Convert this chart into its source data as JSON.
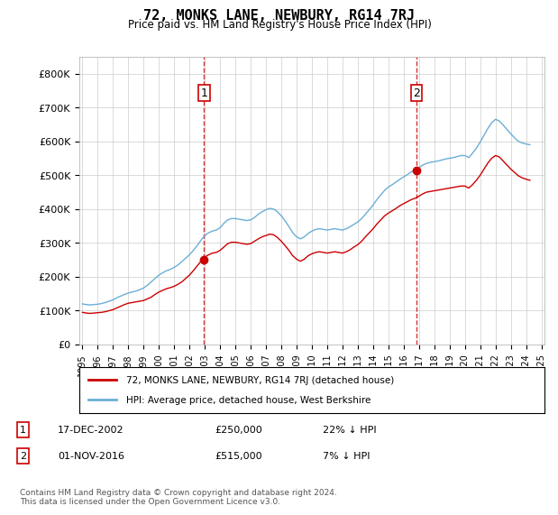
{
  "title": "72, MONKS LANE, NEWBURY, RG14 7RJ",
  "subtitle": "Price paid vs. HM Land Registry's House Price Index (HPI)",
  "ylim": [
    0,
    850000
  ],
  "yticks": [
    0,
    100000,
    200000,
    300000,
    400000,
    500000,
    600000,
    700000,
    800000
  ],
  "ytick_labels": [
    "£0",
    "£100K",
    "£200K",
    "£300K",
    "£400K",
    "£500K",
    "£600K",
    "£700K",
    "£800K"
  ],
  "hpi_color": "#6baed6",
  "price_color": "#cc0000",
  "vline_color": "#cc0000",
  "grid_color": "#cccccc",
  "transaction1": {
    "date": "2002-12-17",
    "price": 250000,
    "label": "1",
    "note": "17-DEC-2002   £250,000    22% ↓ HPI"
  },
  "transaction2": {
    "date": "2016-11-01",
    "price": 515000,
    "label": "2",
    "note": "01-NOV-2016   £515,000    7% ↓ HPI"
  },
  "legend_line1": "72, MONKS LANE, NEWBURY, RG14 7RJ (detached house)",
  "legend_line2": "HPI: Average price, detached house, West Berkshire",
  "footer": "Contains HM Land Registry data © Crown copyright and database right 2024.\nThis data is licensed under the Open Government Licence v3.0.",
  "background_color": "#ffffff",
  "hpi_data": {
    "dates": [
      1995.0,
      1995.25,
      1995.5,
      1995.75,
      1996.0,
      1996.25,
      1996.5,
      1996.75,
      1997.0,
      1997.25,
      1997.5,
      1997.75,
      1998.0,
      1998.25,
      1998.5,
      1998.75,
      1999.0,
      1999.25,
      1999.5,
      1999.75,
      2000.0,
      2000.25,
      2000.5,
      2000.75,
      2001.0,
      2001.25,
      2001.5,
      2001.75,
      2002.0,
      2002.25,
      2002.5,
      2002.75,
      2003.0,
      2003.25,
      2003.5,
      2003.75,
      2004.0,
      2004.25,
      2004.5,
      2004.75,
      2005.0,
      2005.25,
      2005.5,
      2005.75,
      2006.0,
      2006.25,
      2006.5,
      2006.75,
      2007.0,
      2007.25,
      2007.5,
      2007.75,
      2008.0,
      2008.25,
      2008.5,
      2008.75,
      2009.0,
      2009.25,
      2009.5,
      2009.75,
      2010.0,
      2010.25,
      2010.5,
      2010.75,
      2011.0,
      2011.25,
      2011.5,
      2011.75,
      2012.0,
      2012.25,
      2012.5,
      2012.75,
      2013.0,
      2013.25,
      2013.5,
      2013.75,
      2014.0,
      2014.25,
      2014.5,
      2014.75,
      2015.0,
      2015.25,
      2015.5,
      2015.75,
      2016.0,
      2016.25,
      2016.5,
      2016.75,
      2017.0,
      2017.25,
      2017.5,
      2017.75,
      2018.0,
      2018.25,
      2018.5,
      2018.75,
      2019.0,
      2019.25,
      2019.5,
      2019.75,
      2020.0,
      2020.25,
      2020.5,
      2020.75,
      2021.0,
      2021.25,
      2021.5,
      2021.75,
      2022.0,
      2022.25,
      2022.5,
      2022.75,
      2023.0,
      2023.25,
      2023.5,
      2023.75,
      2024.0,
      2024.25
    ],
    "values": [
      120000,
      118000,
      117000,
      118000,
      119000,
      121000,
      124000,
      128000,
      132000,
      138000,
      143000,
      148000,
      152000,
      155000,
      158000,
      162000,
      167000,
      175000,
      185000,
      195000,
      205000,
      212000,
      218000,
      222000,
      228000,
      235000,
      245000,
      255000,
      265000,
      278000,
      292000,
      308000,
      322000,
      330000,
      335000,
      338000,
      345000,
      358000,
      368000,
      372000,
      372000,
      370000,
      368000,
      366000,
      368000,
      375000,
      385000,
      392000,
      398000,
      402000,
      400000,
      392000,
      380000,
      365000,
      348000,
      330000,
      318000,
      312000,
      318000,
      328000,
      335000,
      340000,
      342000,
      340000,
      338000,
      340000,
      342000,
      340000,
      338000,
      342000,
      348000,
      355000,
      362000,
      372000,
      385000,
      398000,
      412000,
      428000,
      442000,
      455000,
      465000,
      472000,
      480000,
      488000,
      495000,
      502000,
      510000,
      515000,
      522000,
      530000,
      535000,
      538000,
      540000,
      542000,
      545000,
      548000,
      550000,
      552000,
      555000,
      558000,
      558000,
      552000,
      565000,
      580000,
      598000,
      618000,
      638000,
      655000,
      665000,
      660000,
      648000,
      635000,
      622000,
      610000,
      600000,
      595000,
      592000,
      590000
    ]
  },
  "price_data": {
    "dates": [
      1995.0,
      1995.25,
      1995.5,
      1995.75,
      1996.0,
      1996.25,
      1996.5,
      1996.75,
      1997.0,
      1997.25,
      1997.5,
      1997.75,
      1998.0,
      1998.25,
      1998.5,
      1998.75,
      1999.0,
      1999.25,
      1999.5,
      1999.75,
      2000.0,
      2000.25,
      2000.5,
      2000.75,
      2001.0,
      2001.25,
      2001.5,
      2001.75,
      2002.0,
      2002.25,
      2002.5,
      2002.75,
      2003.0,
      2003.25,
      2003.5,
      2003.75,
      2004.0,
      2004.25,
      2004.5,
      2004.75,
      2005.0,
      2005.25,
      2005.5,
      2005.75,
      2006.0,
      2006.25,
      2006.5,
      2006.75,
      2007.0,
      2007.25,
      2007.5,
      2007.75,
      2008.0,
      2008.25,
      2008.5,
      2008.75,
      2009.0,
      2009.25,
      2009.5,
      2009.75,
      2010.0,
      2010.25,
      2010.5,
      2010.75,
      2011.0,
      2011.25,
      2011.5,
      2011.75,
      2012.0,
      2012.25,
      2012.5,
      2012.75,
      2013.0,
      2013.25,
      2013.5,
      2013.75,
      2014.0,
      2014.25,
      2014.5,
      2014.75,
      2015.0,
      2015.25,
      2015.5,
      2015.75,
      2016.0,
      2016.25,
      2016.5,
      2016.75,
      2017.0,
      2017.25,
      2017.5,
      2017.75,
      2018.0,
      2018.25,
      2018.5,
      2018.75,
      2019.0,
      2019.25,
      2019.5,
      2019.75,
      2020.0,
      2020.25,
      2020.5,
      2020.75,
      2021.0,
      2021.25,
      2021.5,
      2021.75,
      2022.0,
      2022.25,
      2022.5,
      2022.75,
      2023.0,
      2023.25,
      2023.5,
      2023.75,
      2024.0,
      2024.25
    ],
    "values": [
      95000,
      93000,
      92000,
      93000,
      94000,
      95000,
      97000,
      100000,
      103000,
      108000,
      113000,
      118000,
      122000,
      124000,
      126000,
      128000,
      130000,
      135000,
      140000,
      148000,
      155000,
      160000,
      165000,
      168000,
      172000,
      178000,
      185000,
      195000,
      205000,
      218000,
      232000,
      246000,
      258000,
      265000,
      270000,
      272000,
      278000,
      288000,
      298000,
      302000,
      302000,
      300000,
      298000,
      296000,
      298000,
      305000,
      312000,
      318000,
      322000,
      326000,
      324000,
      316000,
      305000,
      292000,
      278000,
      262000,
      252000,
      246000,
      252000,
      262000,
      268000,
      272000,
      274000,
      272000,
      270000,
      272000,
      274000,
      272000,
      270000,
      274000,
      280000,
      288000,
      295000,
      305000,
      318000,
      330000,
      342000,
      356000,
      368000,
      380000,
      388000,
      395000,
      402000,
      410000,
      416000,
      422000,
      428000,
      432000,
      438000,
      445000,
      450000,
      452000,
      454000,
      456000,
      458000,
      460000,
      462000,
      464000,
      466000,
      468000,
      468000,
      462000,
      472000,
      485000,
      500000,
      518000,
      536000,
      550000,
      558000,
      554000,
      542000,
      530000,
      518000,
      508000,
      498000,
      492000,
      488000,
      485000
    ]
  },
  "xlim": [
    1994.8,
    2025.2
  ],
  "xtick_years": [
    1995,
    1996,
    1997,
    1998,
    1999,
    2000,
    2001,
    2002,
    2003,
    2004,
    2005,
    2006,
    2007,
    2008,
    2009,
    2010,
    2011,
    2012,
    2013,
    2014,
    2015,
    2016,
    2017,
    2018,
    2019,
    2020,
    2021,
    2022,
    2023,
    2024,
    2025
  ]
}
